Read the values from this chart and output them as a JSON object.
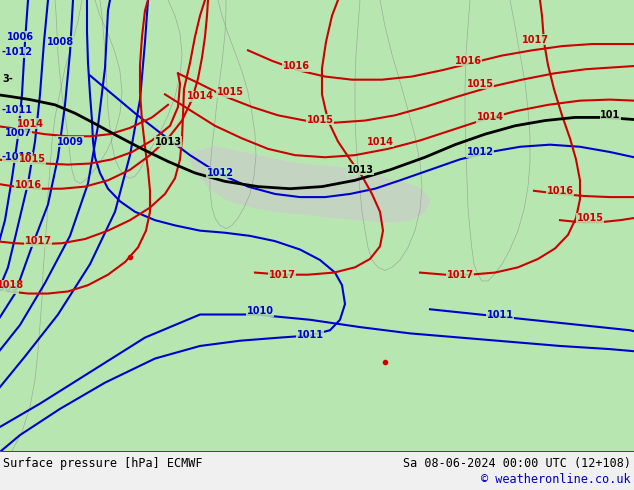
{
  "title_left": "Surface pressure [hPa] ECMWF",
  "title_right": "Sa 08-06-2024 00:00 UTC (12+108)",
  "copyright": "© weatheronline.co.uk",
  "land_color": "#b8e6b0",
  "gray_land_color": "#c8cfc8",
  "border_color": "#888888",
  "bottom_bar_color": "#f0f0f0",
  "blue": "#0000cc",
  "black": "#000000",
  "red": "#cc0000",
  "blue_lw": 1.5,
  "black_lw": 2.0,
  "red_lw": 1.5,
  "coast_lw": 0.5,
  "figsize": [
    6.34,
    4.9
  ],
  "dpi": 100
}
